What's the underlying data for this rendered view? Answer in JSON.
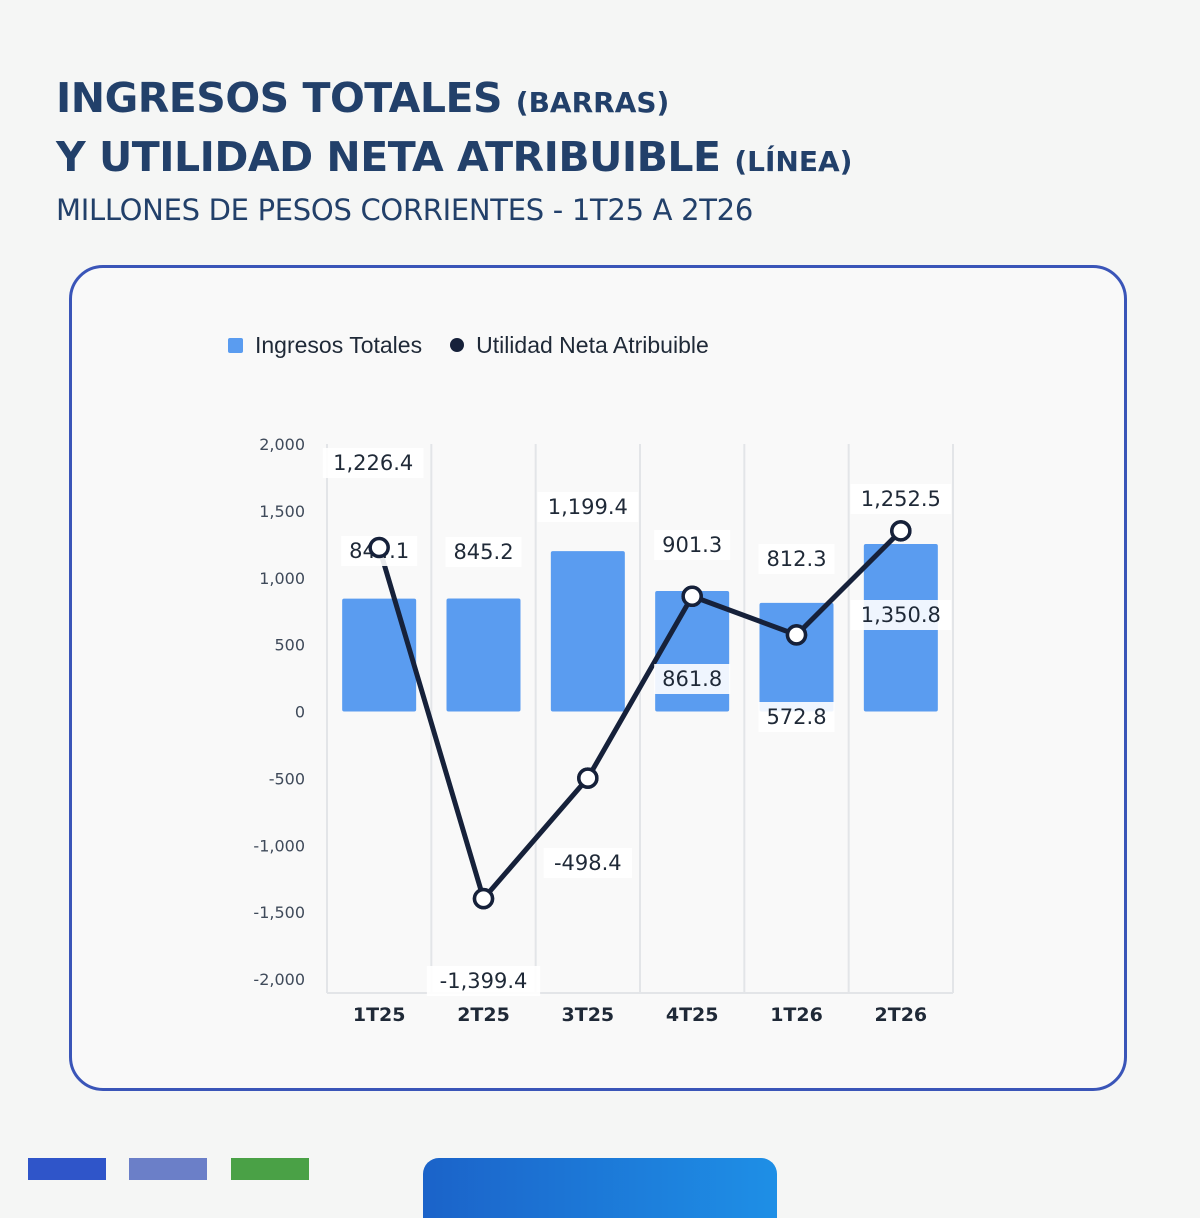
{
  "header": {
    "title_line1_main": "INGRESOS TOTALES",
    "title_line1_note": "(BARRAS)",
    "title_line2_main": "Y UTILIDAD NETA ATRIBUIBLE",
    "title_line2_note": "(LÍNEA)",
    "subtitle": "MILLONES DE PESOS CORRIENTES - 1T25 A 2T26"
  },
  "colors": {
    "bar": "#5a9cf0",
    "line": "#16213a",
    "title": "#22406a",
    "card_border": "#3a55b8",
    "footer_bars": [
      "#2f55c9",
      "#6b7fc8",
      "#4aa146"
    ]
  },
  "chart_data": {
    "type": "bar+line",
    "categories": [
      "1T25",
      "2T25",
      "3T25",
      "4T25",
      "1T26",
      "2T26"
    ],
    "series": [
      {
        "name": "Ingresos Totales",
        "type": "bar",
        "values": [
          844.1,
          845.2,
          1199.4,
          901.3,
          812.3,
          1252.5
        ]
      },
      {
        "name": "Utilidad Neta Atribuible",
        "type": "line",
        "values": [
          1226.4,
          -1399.4,
          -498.4,
          861.8,
          572.8,
          1350.8
        ]
      }
    ],
    "bar_labels": [
      "844.1",
      "845.2",
      "1,199.4",
      "901.3",
      "812.3",
      "1,252.5"
    ],
    "line_labels": [
      "1,226.4",
      "-1,399.4",
      "-498.4",
      "861.8",
      "572.8",
      "1,350.8"
    ],
    "yticks": [
      2000,
      1500,
      1000,
      500,
      0,
      -500,
      -1000,
      -1500,
      -2000
    ],
    "ytick_labels": [
      "2,000",
      "1,500",
      "1,000",
      "500",
      "0",
      "-500",
      "-1,000",
      "-1,500",
      "-2,000"
    ],
    "ylim": [
      -2000,
      2000
    ],
    "grid": "vertical",
    "legend": "top"
  }
}
